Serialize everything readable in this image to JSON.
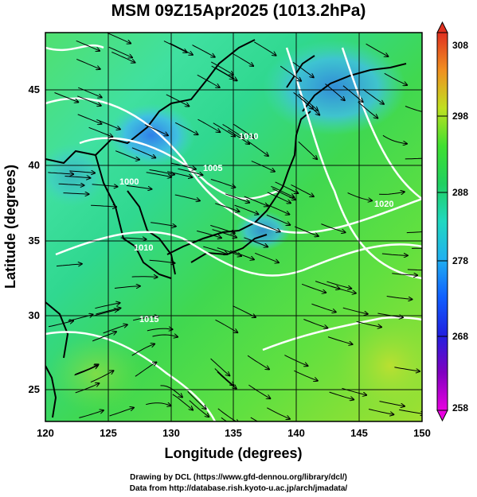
{
  "title": "MSM 09Z15Apr2025 (1013.2hPa)",
  "map": {
    "xlabel": "Longitude (degrees)",
    "ylabel": "Latitude (degrees)",
    "xlim": [
      120,
      150
    ],
    "ylim": [
      22.5,
      48
    ],
    "x_ticks": [
      "120",
      "125",
      "130",
      "135",
      "140",
      "145",
      "150"
    ],
    "y_ticks": [
      "25",
      "30",
      "35",
      "40",
      "45"
    ],
    "grid": true,
    "field_colors": {
      "land_outline": "#000000",
      "isobar": "#ffffff",
      "streamline": "#000000"
    },
    "isobar_labels": [
      "1000",
      "1010",
      "1015",
      "1020",
      "1010",
      "1005"
    ]
  },
  "colorbar": {
    "ticks": [
      "308",
      "298",
      "288",
      "278",
      "268",
      "258"
    ],
    "min": 258,
    "max": 308,
    "colors": [
      "#e800e0",
      "#6a00c8",
      "#1030ff",
      "#20a0f0",
      "#20d8d0",
      "#20d880",
      "#30e030",
      "#a0e020",
      "#f0f020",
      "#f0a020",
      "#e04020"
    ]
  },
  "credits": {
    "line1": "Drawing by DCL (https://www.gfd-dennou.org/library/dcl/)",
    "line2": "Data from http://database.rish.kyoto-u.ac.jp/arch/jmadata/"
  }
}
